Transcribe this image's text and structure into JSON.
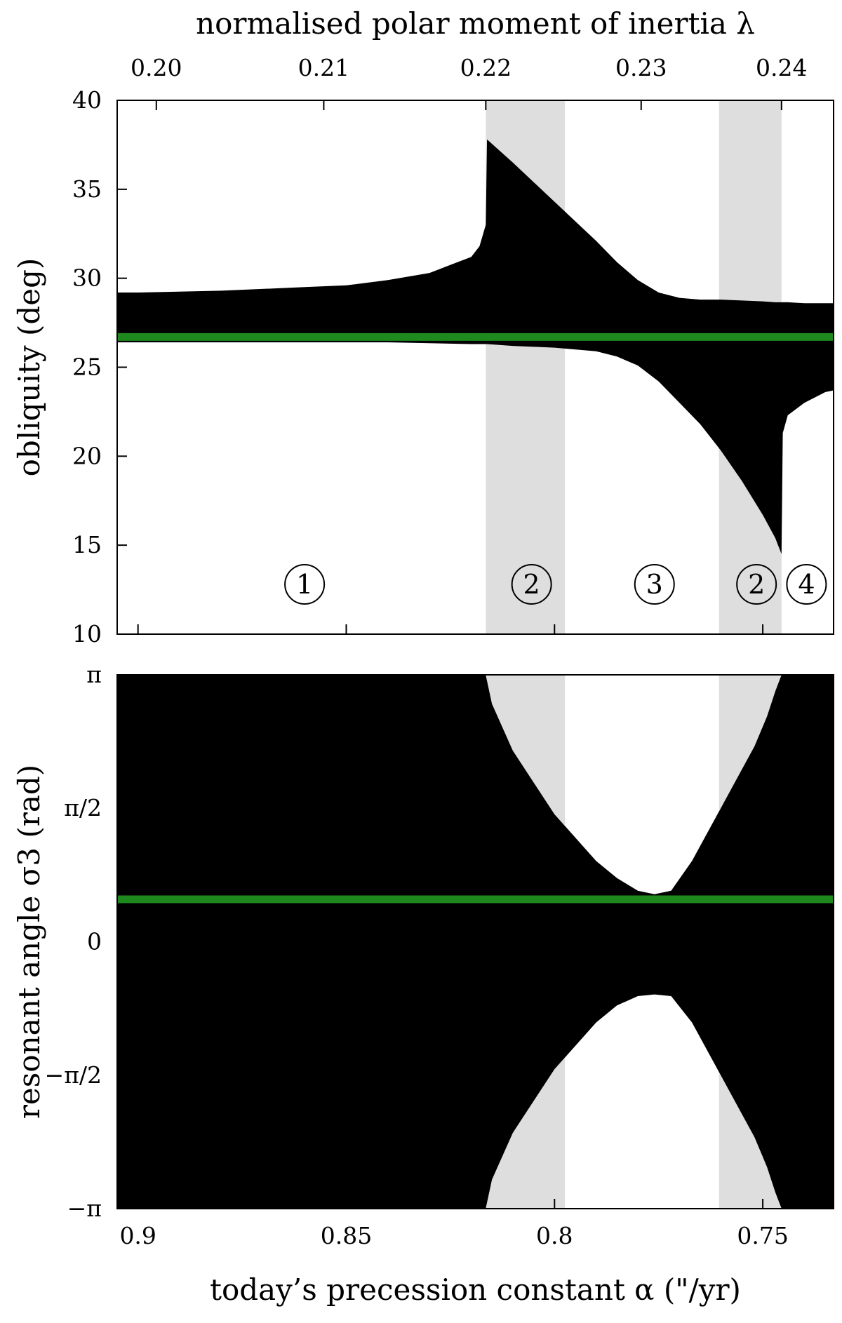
{
  "chart_data": [
    {
      "id": "obliquity",
      "type": "area",
      "top_axis": {
        "label": "normalised polar moment of inertia λ",
        "ticks": [
          0.2,
          0.21,
          0.22,
          0.23,
          0.24
        ],
        "tick_labels": [
          "0.20",
          "0.21",
          "0.22",
          "0.23",
          "0.24"
        ],
        "tick_alpha": [
          0.8956,
          0.8554,
          0.8165,
          0.7792,
          0.7455
        ]
      },
      "xlabel": "",
      "xlim": [
        0.905,
        0.733
      ],
      "x_ticks": [
        0.9,
        0.85,
        0.8,
        0.75
      ],
      "ylabel": "obliquity (deg)",
      "ylim": [
        10,
        40
      ],
      "y_ticks": [
        10,
        15,
        20,
        25,
        30,
        35,
        40
      ],
      "y_tick_labels": [
        "10",
        "15",
        "20",
        "25",
        "30",
        "35",
        "40"
      ],
      "shaded_regions": [
        [
          0.8165,
          0.7975
        ],
        [
          0.7605,
          0.7455
        ]
      ],
      "reference_line": {
        "y": 26.7,
        "color": "#1e8a1e"
      },
      "band": {
        "color": "#000000",
        "x": [
          0.905,
          0.9,
          0.88,
          0.86,
          0.85,
          0.84,
          0.83,
          0.82,
          0.818,
          0.8165,
          0.8162,
          0.81,
          0.8,
          0.79,
          0.785,
          0.78,
          0.775,
          0.77,
          0.765,
          0.76,
          0.755,
          0.75,
          0.747,
          0.7455,
          0.7452,
          0.744,
          0.74,
          0.735,
          0.733
        ],
        "upper": [
          29.2,
          29.2,
          29.3,
          29.5,
          29.6,
          29.9,
          30.3,
          31.2,
          31.8,
          33.0,
          37.8,
          36.5,
          34.3,
          32.1,
          30.9,
          29.9,
          29.2,
          28.9,
          28.8,
          28.8,
          28.75,
          28.7,
          28.65,
          28.65,
          28.65,
          28.65,
          28.6,
          28.6,
          28.6
        ],
        "lower": [
          26.4,
          26.4,
          26.4,
          26.4,
          26.4,
          26.4,
          26.35,
          26.3,
          26.3,
          26.3,
          26.3,
          26.2,
          26.1,
          25.9,
          25.6,
          25.1,
          24.2,
          23.0,
          21.8,
          20.3,
          18.6,
          16.7,
          15.4,
          14.5,
          21.3,
          22.3,
          23.0,
          23.6,
          23.7
        ]
      },
      "annotations": [
        {
          "text": "1",
          "x": 0.86,
          "y": 12.8
        },
        {
          "text": "2",
          "x": 0.8055,
          "y": 12.8
        },
        {
          "text": "3",
          "x": 0.776,
          "y": 12.8
        },
        {
          "text": "2",
          "x": 0.7515,
          "y": 12.8
        },
        {
          "text": "4",
          "x": 0.7395,
          "y": 12.8
        }
      ]
    },
    {
      "id": "resonant-angle",
      "type": "area",
      "xlabel": "today’s precession constant α (\"/yr)",
      "xlim": [
        0.905,
        0.733
      ],
      "x_ticks": [
        0.9,
        0.85,
        0.8,
        0.75
      ],
      "x_tick_labels": [
        "0.9",
        "0.85",
        "0.8",
        "0.75"
      ],
      "ylabel": "resonant angle σ3 (rad)",
      "ylim": [
        -3.14159,
        3.14159
      ],
      "y_ticks": [
        -3.14159,
        -1.5708,
        0,
        1.5708,
        3.14159
      ],
      "y_tick_labels": [
        "−π",
        "−π/2",
        "0",
        "π/2",
        "π"
      ],
      "shaded_regions": [
        [
          0.8165,
          0.7975
        ],
        [
          0.7605,
          0.7455
        ]
      ],
      "reference_line": {
        "y": 0.5,
        "color": "#1e8a1e"
      },
      "hole": {
        "x": [
          0.8165,
          0.815,
          0.81,
          0.8,
          0.79,
          0.785,
          0.78,
          0.776,
          0.772,
          0.767,
          0.762,
          0.757,
          0.752,
          0.749,
          0.747,
          0.7455
        ],
        "upper": [
          3.14159,
          2.8,
          2.25,
          1.5,
          0.95,
          0.75,
          0.6,
          0.56,
          0.6,
          0.95,
          1.4,
          1.85,
          2.3,
          2.65,
          2.95,
          3.14159
        ],
        "lower": [
          -3.14159,
          -2.8,
          -2.25,
          -1.5,
          -0.95,
          -0.75,
          -0.64,
          -0.62,
          -0.64,
          -0.95,
          -1.4,
          -1.85,
          -2.3,
          -2.65,
          -2.95,
          -3.14159
        ]
      }
    }
  ]
}
